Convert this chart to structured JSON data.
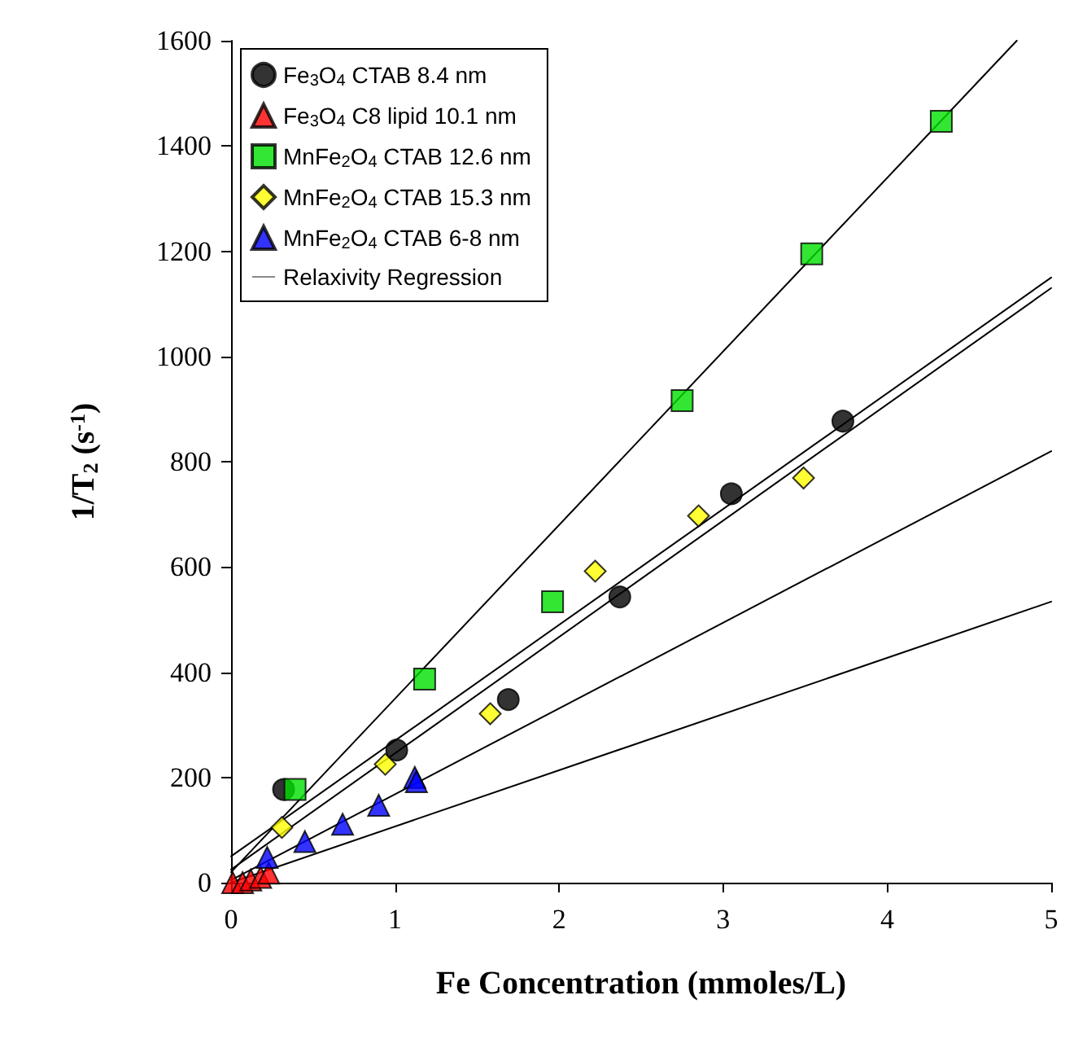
{
  "chart_data": {
    "type": "scatter",
    "xlabel": "Fe Concentration (mmoles/L)",
    "ylabel": "1/T$_{2}$ (s$^{-1}$)",
    "xlim": [
      0,
      5
    ],
    "xticks": [
      0,
      1,
      2,
      3,
      4,
      5
    ],
    "ylim": [
      0,
      1600
    ],
    "yticks": [
      0,
      200,
      400,
      600,
      800,
      1000,
      1200,
      1400,
      1600
    ],
    "grid": false,
    "legend": "top left",
    "series": [
      {
        "name": "Fe$_{3}$O$_{4}$ CTAB 8.4 nm",
        "color": "#000000",
        "marker": "circle",
        "x": [
          0.32,
          1.01,
          1.69,
          2.37,
          3.05,
          3.73
        ],
        "values": [
          177,
          252,
          348,
          543,
          739,
          877
        ]
      },
      {
        "name": "Fe$_{3}$O$_{4}$ C8 lipid 10.1 nm",
        "color": "#ff0000",
        "marker": "triangle",
        "x": [
          0.01,
          0.07,
          0.12,
          0.18,
          0.23
        ],
        "values": [
          0,
          0,
          5,
          10,
          18
        ]
      },
      {
        "name": "MnFe$_{2}$O$_{4}$ CTAB 12.6 nm",
        "color": "#00e000",
        "marker": "square",
        "x": [
          0.39,
          1.18,
          1.96,
          2.75,
          3.54,
          4.33
        ],
        "values": [
          177,
          387,
          534,
          916,
          1195,
          1447
        ]
      },
      {
        "name": "MnFe$_{2}$O$_{4}$ CTAB 15.3 nm",
        "color": "#ffff00",
        "marker": "diamond",
        "x": [
          0.31,
          0.94,
          1.58,
          2.22,
          2.85,
          3.49
        ],
        "values": [
          105,
          225,
          321,
          592,
          697,
          769
        ]
      },
      {
        "name": "MnFe$_{2}$O$_{4}$ CTAB 6-8 nm",
        "color": "#0000ff",
        "marker": "triangle",
        "x": [
          0.22,
          0.45,
          0.68,
          0.9,
          1.12,
          1.13
        ],
        "values": [
          48,
          78,
          111,
          147,
          200,
          192
        ]
      },
      {
        "name": "Relaxivity Regression",
        "type": "line",
        "color": "#000000",
        "marker": "none",
        "x": [
          0,
          4.79
        ],
        "values": [
          20,
          1600
        ]
      },
      {
        "type": "line",
        "color": "#000000",
        "marker": "none",
        "x": [
          0,
          5
        ],
        "values": [
          50,
          1150
        ]
      },
      {
        "type": "line",
        "color": "#000000",
        "marker": "none",
        "x": [
          0,
          5
        ],
        "values": [
          25,
          1130
        ]
      },
      {
        "type": "line",
        "color": "#000000",
        "marker": "none",
        "x": [
          0,
          5
        ],
        "values": [
          5,
          820
        ]
      },
      {
        "type": "line",
        "color": "#000000",
        "marker": "none",
        "x": [
          0,
          5
        ],
        "values": [
          0,
          534
        ]
      }
    ]
  }
}
